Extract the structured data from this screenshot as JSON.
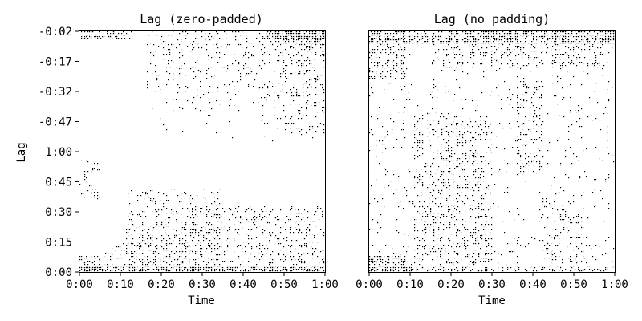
{
  "chart_data": [
    {
      "type": "heatmap",
      "title": "Lag (zero-padded)",
      "xlabel": "Time",
      "ylabel": "Lag",
      "xlim": [
        "0:00",
        "1:00"
      ],
      "ylim": [
        "0:00",
        "-0:02"
      ],
      "x_ticks": [
        "0:00",
        "0:10",
        "0:20",
        "0:30",
        "0:40",
        "0:50",
        "1:00"
      ],
      "y_ticks": [
        "0:00",
        "0:15",
        "0:30",
        "0:45",
        "1:00",
        "-0:47",
        "-0:32",
        "-0:17",
        "-0:02"
      ],
      "grid": false,
      "colormap": "binary",
      "mark_color": "#000000"
    },
    {
      "type": "heatmap",
      "title": "Lag (no padding)",
      "xlabel": "Time",
      "ylabel": "",
      "xlim": [
        "0:00",
        "1:00"
      ],
      "ylim": [
        "0:00",
        "-0:02"
      ],
      "x_ticks": [
        "0:00",
        "0:10",
        "0:20",
        "0:30",
        "0:40",
        "0:50",
        "1:00"
      ],
      "y_ticks": [],
      "grid": false,
      "colormap": "binary",
      "mark_color": "#000000"
    }
  ]
}
